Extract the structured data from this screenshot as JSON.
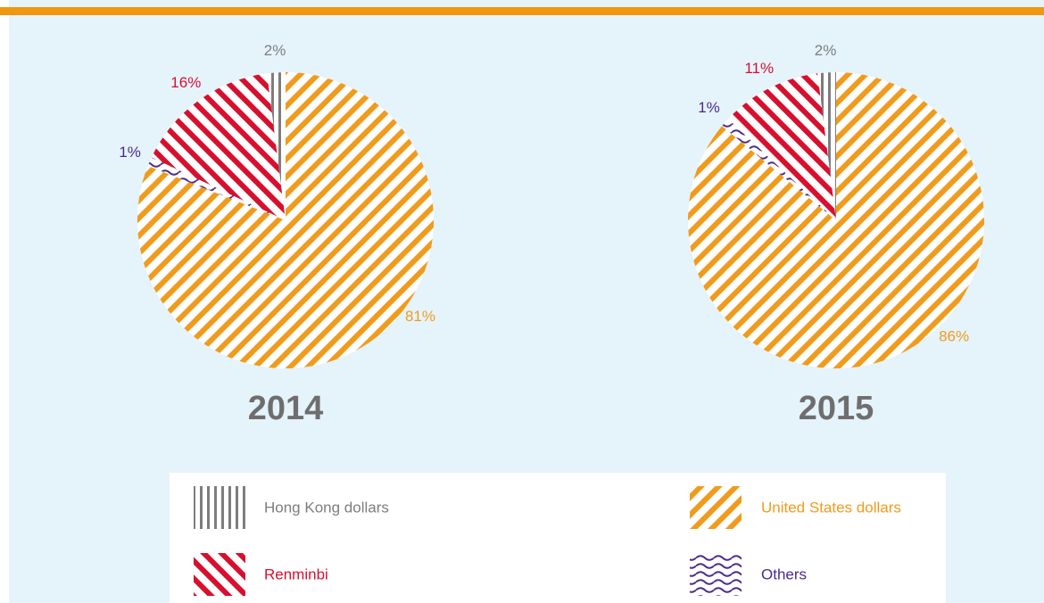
{
  "chart_data": [
    {
      "type": "pie",
      "title": "2014",
      "categories": [
        "United States dollars",
        "Others",
        "Renminbi",
        "Hong Kong dollars"
      ],
      "values": [
        81,
        1,
        16,
        2
      ],
      "value_labels": [
        "81%",
        "1%",
        "16%",
        "2%"
      ],
      "colors": [
        "#f19b1c",
        "#4a2b8c",
        "#d7102e",
        "#7d7d7d"
      ],
      "patterns": [
        "diagonal-up",
        "wave",
        "diagonal-down",
        "vertical"
      ]
    },
    {
      "type": "pie",
      "title": "2015",
      "categories": [
        "United States dollars",
        "Others",
        "Renminbi",
        "Hong Kong dollars"
      ],
      "values": [
        86,
        1,
        11,
        2
      ],
      "value_labels": [
        "86%",
        "1%",
        "11%",
        "2%"
      ],
      "colors": [
        "#f19b1c",
        "#4a2b8c",
        "#d7102e",
        "#7d7d7d"
      ],
      "patterns": [
        "diagonal-up",
        "wave",
        "diagonal-down",
        "vertical"
      ]
    }
  ]
}
